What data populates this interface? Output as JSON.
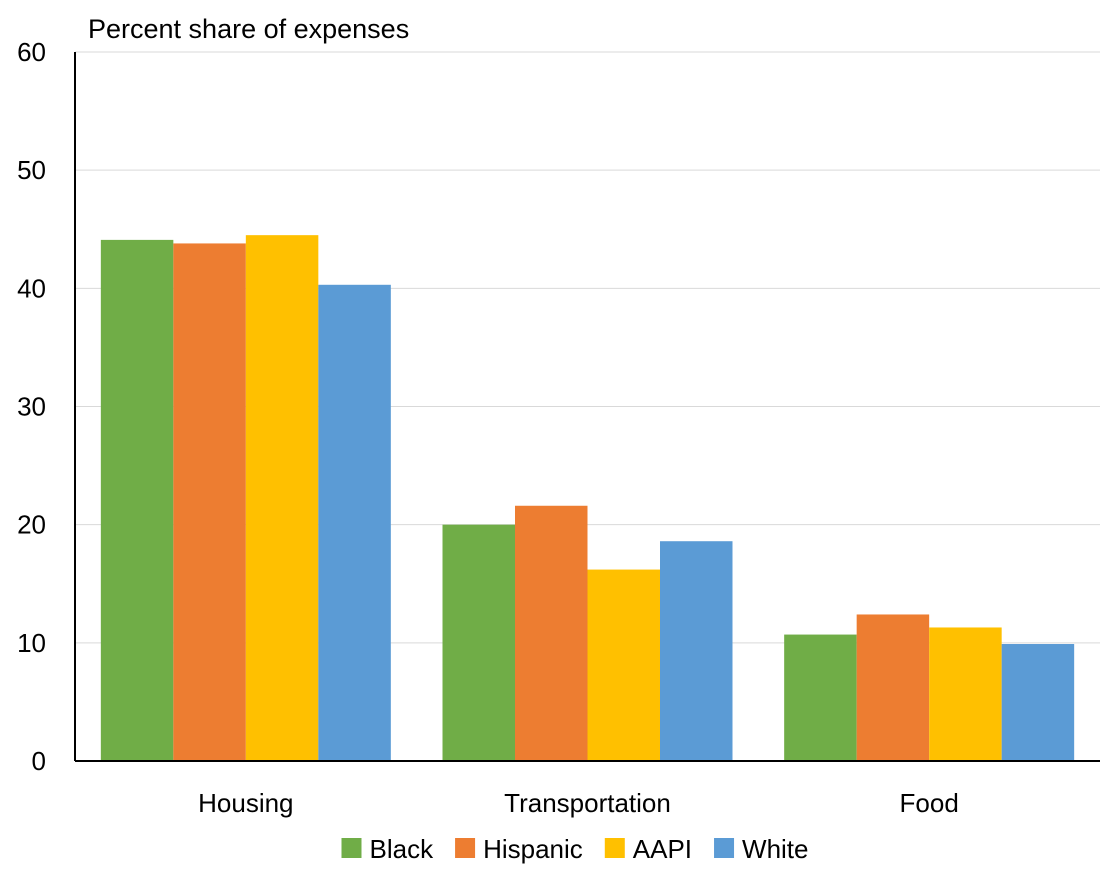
{
  "chart_data": {
    "type": "bar",
    "title": "Percent share of expenses",
    "xlabel": "",
    "ylabel": "",
    "categories": [
      "Housing",
      "Transportation",
      "Food"
    ],
    "series": [
      {
        "name": "Black",
        "color": "#70ad47",
        "values": [
          44.1,
          20.0,
          10.7
        ]
      },
      {
        "name": "Hispanic",
        "color": "#ed7d31",
        "values": [
          43.8,
          21.6,
          12.4
        ]
      },
      {
        "name": "AAPI",
        "color": "#ffc000",
        "values": [
          44.5,
          16.2,
          11.3
        ]
      },
      {
        "name": "White",
        "color": "#5b9bd5",
        "values": [
          40.3,
          18.6,
          9.9
        ]
      }
    ],
    "ylim": [
      0,
      60
    ],
    "yticks": [
      0,
      10,
      20,
      30,
      40,
      50,
      60
    ],
    "grid": true,
    "legend_position": "bottom"
  }
}
